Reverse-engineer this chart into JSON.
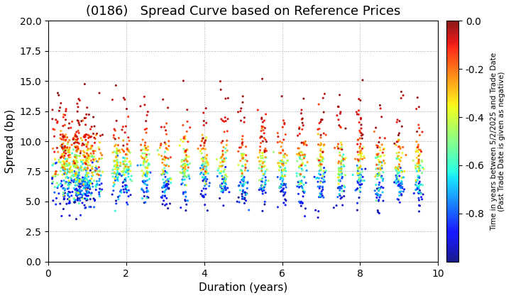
{
  "title": "(0186)   Spread Curve based on Reference Prices",
  "xlabel": "Duration (years)",
  "ylabel": "Spread (bp)",
  "colorbar_label": "Time in years between 5/2/2025 and Trade Date\n(Past Trade Date is given as negative)",
  "xlim": [
    0,
    10
  ],
  "ylim": [
    0.0,
    20.0
  ],
  "cmap": "jet",
  "color_vmin": -1.0,
  "color_vmax": 0.0,
  "colorbar_ticks": [
    0.0,
    -0.2,
    -0.4,
    -0.6,
    -0.8
  ],
  "background_color": "#ffffff",
  "grid_color": "#aaaaaa",
  "title_fontsize": 13,
  "axis_fontsize": 11,
  "tick_fontsize": 10,
  "cluster_centers": [
    0.45,
    0.75,
    1.0,
    1.75,
    2.0,
    2.5,
    3.0,
    3.5,
    4.0,
    4.5,
    5.0,
    5.5,
    6.0,
    6.5,
    7.0,
    7.5,
    8.0,
    8.5,
    9.0,
    9.5
  ],
  "cluster_widths": [
    0.08,
    0.06,
    0.06,
    0.06,
    0.06,
    0.06,
    0.06,
    0.06,
    0.06,
    0.06,
    0.06,
    0.06,
    0.06,
    0.06,
    0.06,
    0.06,
    0.06,
    0.06,
    0.06,
    0.06
  ]
}
